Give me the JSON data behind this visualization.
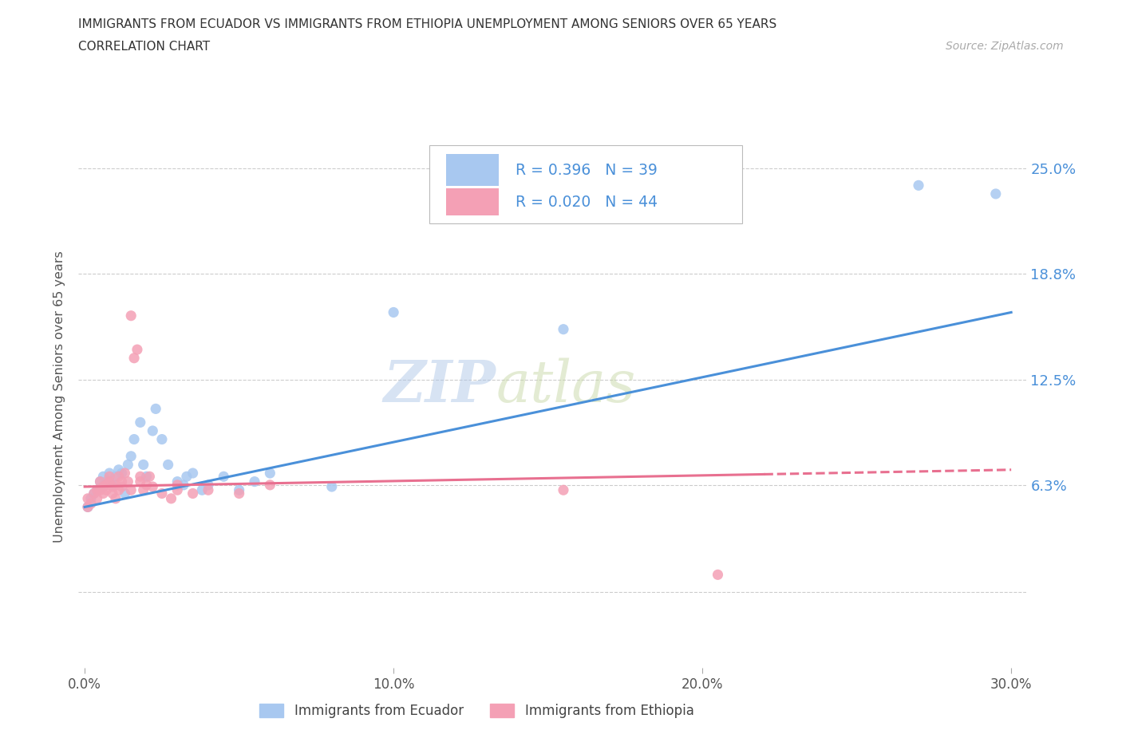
{
  "title_line1": "IMMIGRANTS FROM ECUADOR VS IMMIGRANTS FROM ETHIOPIA UNEMPLOYMENT AMONG SENIORS OVER 65 YEARS",
  "title_line2": "CORRELATION CHART",
  "source": "Source: ZipAtlas.com",
  "ylabel": "Unemployment Among Seniors over 65 years",
  "xlim": [
    -0.002,
    0.305
  ],
  "ylim": [
    -0.045,
    0.275
  ],
  "yticks": [
    0.0,
    0.063,
    0.125,
    0.188,
    0.25
  ],
  "ytick_labels": [
    "",
    "6.3%",
    "12.5%",
    "18.8%",
    "25.0%"
  ],
  "xticks": [
    0.0,
    0.1,
    0.2,
    0.3
  ],
  "xtick_labels": [
    "0.0%",
    "10.0%",
    "20.0%",
    "30.0%"
  ],
  "ecuador_color": "#a8c8f0",
  "ethiopia_color": "#f4a0b5",
  "ecuador_line_color": "#4a90d9",
  "ethiopia_line_color": "#e87090",
  "ecuador_R": 0.396,
  "ecuador_N": 39,
  "ethiopia_R": 0.02,
  "ethiopia_N": 44,
  "watermark_zip": "ZIP",
  "watermark_atlas": "atlas",
  "ecuador_x": [
    0.001,
    0.002,
    0.003,
    0.004,
    0.005,
    0.006,
    0.006,
    0.007,
    0.008,
    0.009,
    0.01,
    0.011,
    0.012,
    0.013,
    0.014,
    0.015,
    0.016,
    0.018,
    0.019,
    0.02,
    0.022,
    0.023,
    0.025,
    0.027,
    0.03,
    0.032,
    0.033,
    0.035,
    0.038,
    0.04,
    0.045,
    0.05,
    0.055,
    0.06,
    0.08,
    0.1,
    0.155,
    0.27,
    0.295
  ],
  "ecuador_y": [
    0.05,
    0.055,
    0.058,
    0.06,
    0.065,
    0.062,
    0.068,
    0.065,
    0.07,
    0.063,
    0.068,
    0.072,
    0.07,
    0.058,
    0.075,
    0.08,
    0.09,
    0.1,
    0.075,
    0.068,
    0.095,
    0.108,
    0.09,
    0.075,
    0.065,
    0.063,
    0.068,
    0.07,
    0.06,
    0.063,
    0.068,
    0.06,
    0.065,
    0.07,
    0.062,
    0.165,
    0.155,
    0.24,
    0.235
  ],
  "ethiopia_x": [
    0.001,
    0.001,
    0.002,
    0.003,
    0.004,
    0.004,
    0.005,
    0.005,
    0.006,
    0.006,
    0.007,
    0.007,
    0.008,
    0.008,
    0.009,
    0.009,
    0.01,
    0.01,
    0.011,
    0.011,
    0.012,
    0.012,
    0.013,
    0.014,
    0.015,
    0.015,
    0.016,
    0.017,
    0.018,
    0.018,
    0.019,
    0.02,
    0.021,
    0.022,
    0.025,
    0.028,
    0.03,
    0.03,
    0.035,
    0.04,
    0.05,
    0.06,
    0.155,
    0.205
  ],
  "ethiopia_y": [
    0.05,
    0.055,
    0.052,
    0.058,
    0.06,
    0.055,
    0.06,
    0.065,
    0.062,
    0.058,
    0.063,
    0.06,
    0.068,
    0.065,
    0.062,
    0.058,
    0.063,
    0.055,
    0.068,
    0.06,
    0.065,
    0.062,
    0.07,
    0.065,
    0.06,
    0.163,
    0.138,
    0.143,
    0.068,
    0.065,
    0.06,
    0.063,
    0.068,
    0.062,
    0.058,
    0.055,
    0.06,
    0.063,
    0.058,
    0.06,
    0.058,
    0.063,
    0.06,
    0.01
  ],
  "background_color": "#ffffff",
  "grid_color": "#cccccc"
}
